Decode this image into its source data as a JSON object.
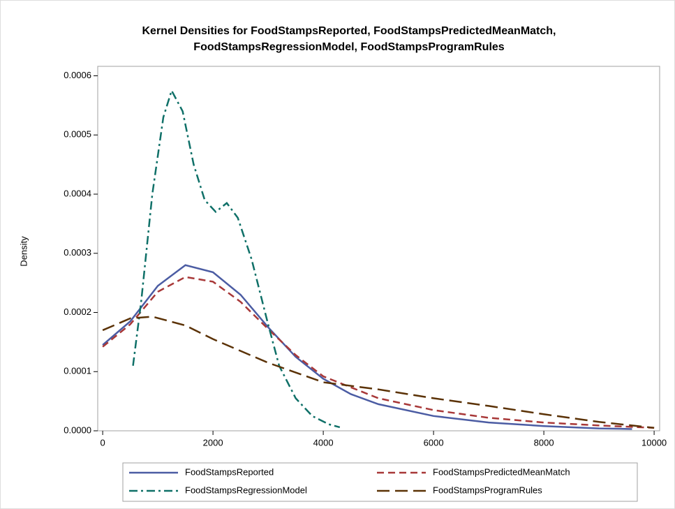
{
  "chart_data": {
    "type": "line",
    "title": "Kernel Densities for FoodStampsReported, FoodStampsPredictedMeanMatch,",
    "subtitle": "FoodStampsRegressionModel, FoodStampsProgramRules",
    "ylabel": "Density",
    "xlim": [
      -90,
      10100
    ],
    "xticks": [
      0,
      2000,
      4000,
      6000,
      8000,
      10000
    ],
    "ylim": [
      0,
      0.000616
    ],
    "yticks": [
      {
        "value": 0,
        "label": "0.0000"
      },
      0.0001,
      0.0002,
      0.0003,
      0.0004,
      0.0005,
      0.0006
    ],
    "series": [
      {
        "name": "FoodStampsReported",
        "color": "#4b5ca3",
        "line_style": "solid",
        "x": [
          0,
          500,
          1000,
          1500,
          2000,
          2500,
          3000,
          3500,
          4000,
          4500,
          5000,
          6000,
          7000,
          8000,
          9000,
          9600
        ],
        "values": [
          0.000145,
          0.000185,
          0.000245,
          0.00028,
          0.000268,
          0.00023,
          0.000175,
          0.000125,
          8.8e-05,
          6.2e-05,
          4.5e-05,
          2.5e-05,
          1.4e-05,
          8e-06,
          4e-06,
          3e-06
        ]
      },
      {
        "name": "FoodStampsPredictedMeanMatch",
        "color": "#a83838",
        "line_style": "dashed",
        "x": [
          0,
          500,
          1000,
          1500,
          2000,
          2500,
          3000,
          3500,
          4000,
          5000,
          6000,
          7000,
          8000,
          9000,
          10000
        ],
        "values": [
          0.000142,
          0.00018,
          0.000235,
          0.00026,
          0.000252,
          0.000218,
          0.000172,
          0.000128,
          9.2e-05,
          5.5e-05,
          3.5e-05,
          2.2e-05,
          1.4e-05,
          9e-06,
          5e-06
        ]
      },
      {
        "name": "FoodStampsRegressionModel",
        "color": "#0f7068",
        "line_style": "dashdot",
        "x": [
          550,
          700,
          900,
          1100,
          1250,
          1450,
          1650,
          1850,
          2050,
          2250,
          2450,
          2700,
          3000,
          3200,
          3500,
          3800,
          4100,
          4300
        ],
        "values": [
          0.00011,
          0.00022,
          0.0004,
          0.00053,
          0.000575,
          0.00054,
          0.00045,
          0.00039,
          0.00037,
          0.000385,
          0.00036,
          0.00029,
          0.00018,
          0.00011,
          5.5e-05,
          2.5e-05,
          1.1e-05,
          6e-06
        ]
      },
      {
        "name": "FoodStampsProgramRules",
        "color": "#5b3206",
        "line_style": "longdash",
        "x": [
          0,
          500,
          900,
          1500,
          2000,
          3000,
          4000,
          5000,
          6000,
          7000,
          8000,
          9000,
          10000
        ],
        "values": [
          0.00017,
          0.00019,
          0.000193,
          0.000178,
          0.000155,
          0.000115,
          8.2e-05,
          7e-05,
          5.5e-05,
          4.2e-05,
          2.8e-05,
          1.5e-05,
          5e-06
        ]
      }
    ]
  }
}
